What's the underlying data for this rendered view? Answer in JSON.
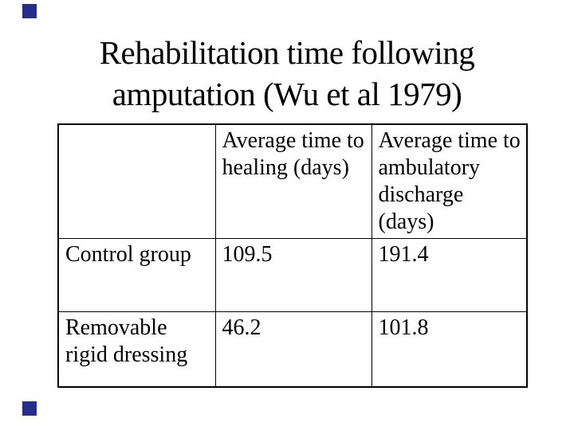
{
  "decor": {
    "accent_color": "#232f8b",
    "marker_style": "background:#232f8b"
  },
  "title": {
    "lines": [
      "Rehabilitation time following",
      "amputation (Wu et al 1979)"
    ],
    "full_text": "Rehabilitation time following amputation (Wu et al 1979)"
  },
  "table": {
    "columns": [
      {
        "header": "",
        "header_lines": []
      },
      {
        "header": "Average time to healing (days)",
        "header_lines": [
          "Average time to",
          "healing (days)"
        ]
      },
      {
        "header": "Average time to ambulatory discharge (days)",
        "header_lines": [
          "Average time to",
          "ambulatory",
          "discharge",
          "(days)"
        ]
      }
    ],
    "rows": [
      {
        "label": "Control group",
        "label_lines": [
          "Control group"
        ],
        "values": [
          "109.5",
          "191.4"
        ]
      },
      {
        "label": "Removable rigid dressing",
        "label_lines": [
          "Removable",
          "rigid dressing"
        ],
        "values": [
          "46.2",
          "101.8"
        ]
      }
    ]
  }
}
